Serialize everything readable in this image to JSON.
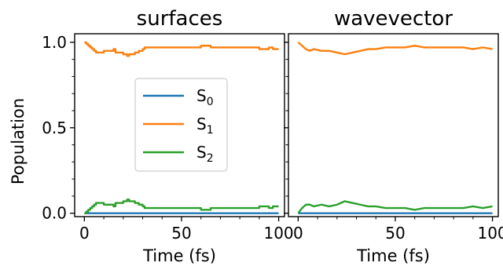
{
  "chart_data": {
    "type": "line",
    "ylabel": "Population",
    "ylim": [
      -0.02,
      1.05
    ],
    "yticks": [
      0.0,
      0.5,
      1.0
    ],
    "ytick_labels": [
      "0.0",
      "0.5",
      "1.0"
    ],
    "xlim": [
      -5,
      103
    ],
    "xticks": [
      0,
      50,
      100
    ],
    "xtick_labels": [
      "0",
      "50",
      "100"
    ],
    "shared_y": true,
    "legend": {
      "placement": "center-left of first panel",
      "entries": [
        {
          "base": "S",
          "sub": "0",
          "color": "#1f77b4"
        },
        {
          "base": "S",
          "sub": "1",
          "color": "#ff7f0e"
        },
        {
          "base": "S",
          "sub": "2",
          "color": "#2ca02c"
        }
      ]
    },
    "panels": [
      {
        "title": "surfaces",
        "xlabel": "Time (fs)",
        "series": [
          {
            "name": "S0",
            "color": "#1f77b4",
            "step": true,
            "x": [
              0,
              100
            ],
            "y": [
              0.0,
              0.0
            ]
          },
          {
            "name": "S1",
            "color": "#ff7f0e",
            "step": true,
            "x": [
              0,
              1,
              2,
              3,
              4,
              5,
              6,
              10,
              15,
              16,
              20,
              22,
              23,
              26,
              28,
              30,
              31,
              35,
              40,
              45,
              50,
              55,
              60,
              65,
              70,
              75,
              80,
              85,
              90,
              95,
              97,
              100
            ],
            "y": [
              1.0,
              0.99,
              0.98,
              0.97,
              0.96,
              0.95,
              0.94,
              0.95,
              0.96,
              0.94,
              0.93,
              0.92,
              0.93,
              0.94,
              0.95,
              0.96,
              0.97,
              0.97,
              0.97,
              0.97,
              0.97,
              0.97,
              0.98,
              0.97,
              0.97,
              0.97,
              0.97,
              0.97,
              0.96,
              0.97,
              0.96,
              0.96
            ]
          },
          {
            "name": "S2",
            "color": "#2ca02c",
            "step": true,
            "x": [
              0,
              1,
              2,
              3,
              4,
              5,
              6,
              10,
              15,
              16,
              20,
              22,
              23,
              26,
              28,
              30,
              31,
              35,
              40,
              45,
              50,
              55,
              60,
              65,
              70,
              75,
              80,
              85,
              90,
              95,
              97,
              100
            ],
            "y": [
              0.0,
              0.01,
              0.02,
              0.03,
              0.04,
              0.05,
              0.06,
              0.05,
              0.04,
              0.06,
              0.07,
              0.08,
              0.07,
              0.06,
              0.05,
              0.04,
              0.03,
              0.03,
              0.03,
              0.03,
              0.03,
              0.03,
              0.02,
              0.03,
              0.03,
              0.03,
              0.03,
              0.03,
              0.04,
              0.03,
              0.04,
              0.04
            ]
          }
        ]
      },
      {
        "title": "wavevector",
        "xlabel": "Time (fs)",
        "series": [
          {
            "name": "S0",
            "color": "#1f77b4",
            "step": false,
            "x": [
              0,
              100
            ],
            "y": [
              0.0,
              0.0
            ]
          },
          {
            "name": "S1",
            "color": "#ff7f0e",
            "step": false,
            "x": [
              0,
              2,
              4,
              6,
              8,
              12,
              16,
              20,
              24,
              28,
              32,
              36,
              40,
              45,
              50,
              55,
              60,
              65,
              70,
              75,
              80,
              85,
              90,
              95,
              100
            ],
            "y": [
              1.0,
              0.98,
              0.96,
              0.95,
              0.96,
              0.95,
              0.95,
              0.94,
              0.93,
              0.94,
              0.95,
              0.96,
              0.96,
              0.97,
              0.97,
              0.97,
              0.98,
              0.97,
              0.97,
              0.97,
              0.97,
              0.97,
              0.96,
              0.97,
              0.96
            ]
          },
          {
            "name": "S2",
            "color": "#2ca02c",
            "step": false,
            "x": [
              0,
              2,
              4,
              6,
              8,
              12,
              16,
              20,
              24,
              28,
              32,
              36,
              40,
              45,
              50,
              55,
              60,
              65,
              70,
              75,
              80,
              85,
              90,
              95,
              100
            ],
            "y": [
              0.0,
              0.03,
              0.05,
              0.05,
              0.04,
              0.05,
              0.04,
              0.05,
              0.07,
              0.06,
              0.05,
              0.04,
              0.04,
              0.03,
              0.03,
              0.03,
              0.02,
              0.03,
              0.03,
              0.03,
              0.03,
              0.03,
              0.04,
              0.03,
              0.04
            ]
          }
        ]
      }
    ]
  }
}
